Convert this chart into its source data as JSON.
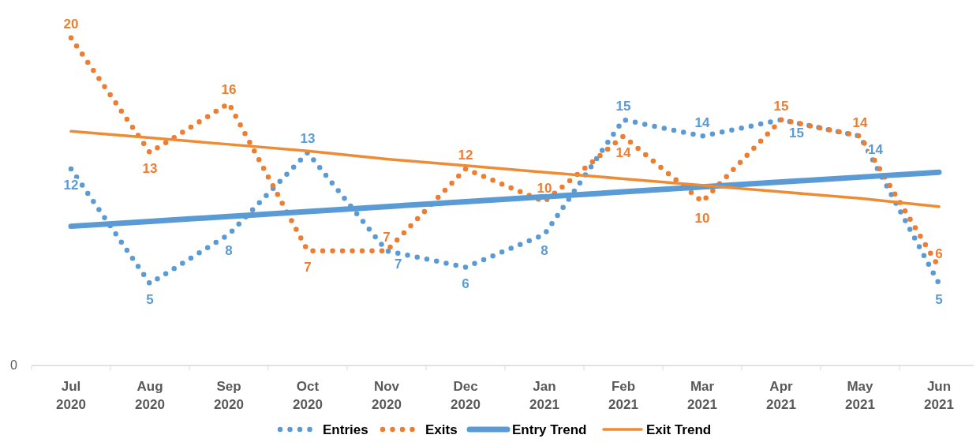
{
  "chart_data": {
    "type": "line",
    "categories": [
      "Jul 2020",
      "Aug 2020",
      "Sep 2020",
      "Oct 2020",
      "Nov 2020",
      "Dec 2020",
      "Jan 2021",
      "Feb 2021",
      "Mar 2021",
      "Apr 2021",
      "May 2021",
      "Jun 2021"
    ],
    "series": [
      {
        "name": "Entries",
        "color": "#5b9bd5",
        "line_style": "dotted",
        "values": [
          12,
          5,
          8,
          13,
          7,
          6,
          8,
          15,
          14,
          15,
          14,
          5
        ],
        "value_labels": [
          "12",
          "5",
          "8",
          "13",
          "7",
          "6",
          "8",
          "15",
          "14",
          "15",
          "14",
          "5"
        ]
      },
      {
        "name": "Exits",
        "color": "#ed7d31",
        "line_style": "dotted",
        "values": [
          20,
          13,
          16,
          7,
          7,
          12,
          10,
          14,
          10,
          15,
          14,
          6
        ],
        "value_labels": [
          "20",
          "13",
          "16",
          "7",
          "7",
          "12",
          "10",
          "14",
          "10",
          "15",
          "14",
          "6"
        ]
      },
      {
        "name": "Entry Trend",
        "color": "#5b9bd5",
        "line_style": "solid",
        "values": [
          8.5,
          8.8,
          9.1,
          9.4,
          9.7,
          10.0,
          10.3,
          10.6,
          10.9,
          11.2,
          11.5,
          11.8
        ]
      },
      {
        "name": "Exit Trend",
        "color": "#ed8c35",
        "line_style": "solid",
        "values": [
          14.3,
          13.9,
          13.5,
          13.1,
          12.6,
          12.2,
          11.8,
          11.4,
          11.0,
          10.6,
          10.2,
          9.7
        ]
      }
    ],
    "annotations": [
      "0"
    ],
    "legend": "bottom"
  }
}
